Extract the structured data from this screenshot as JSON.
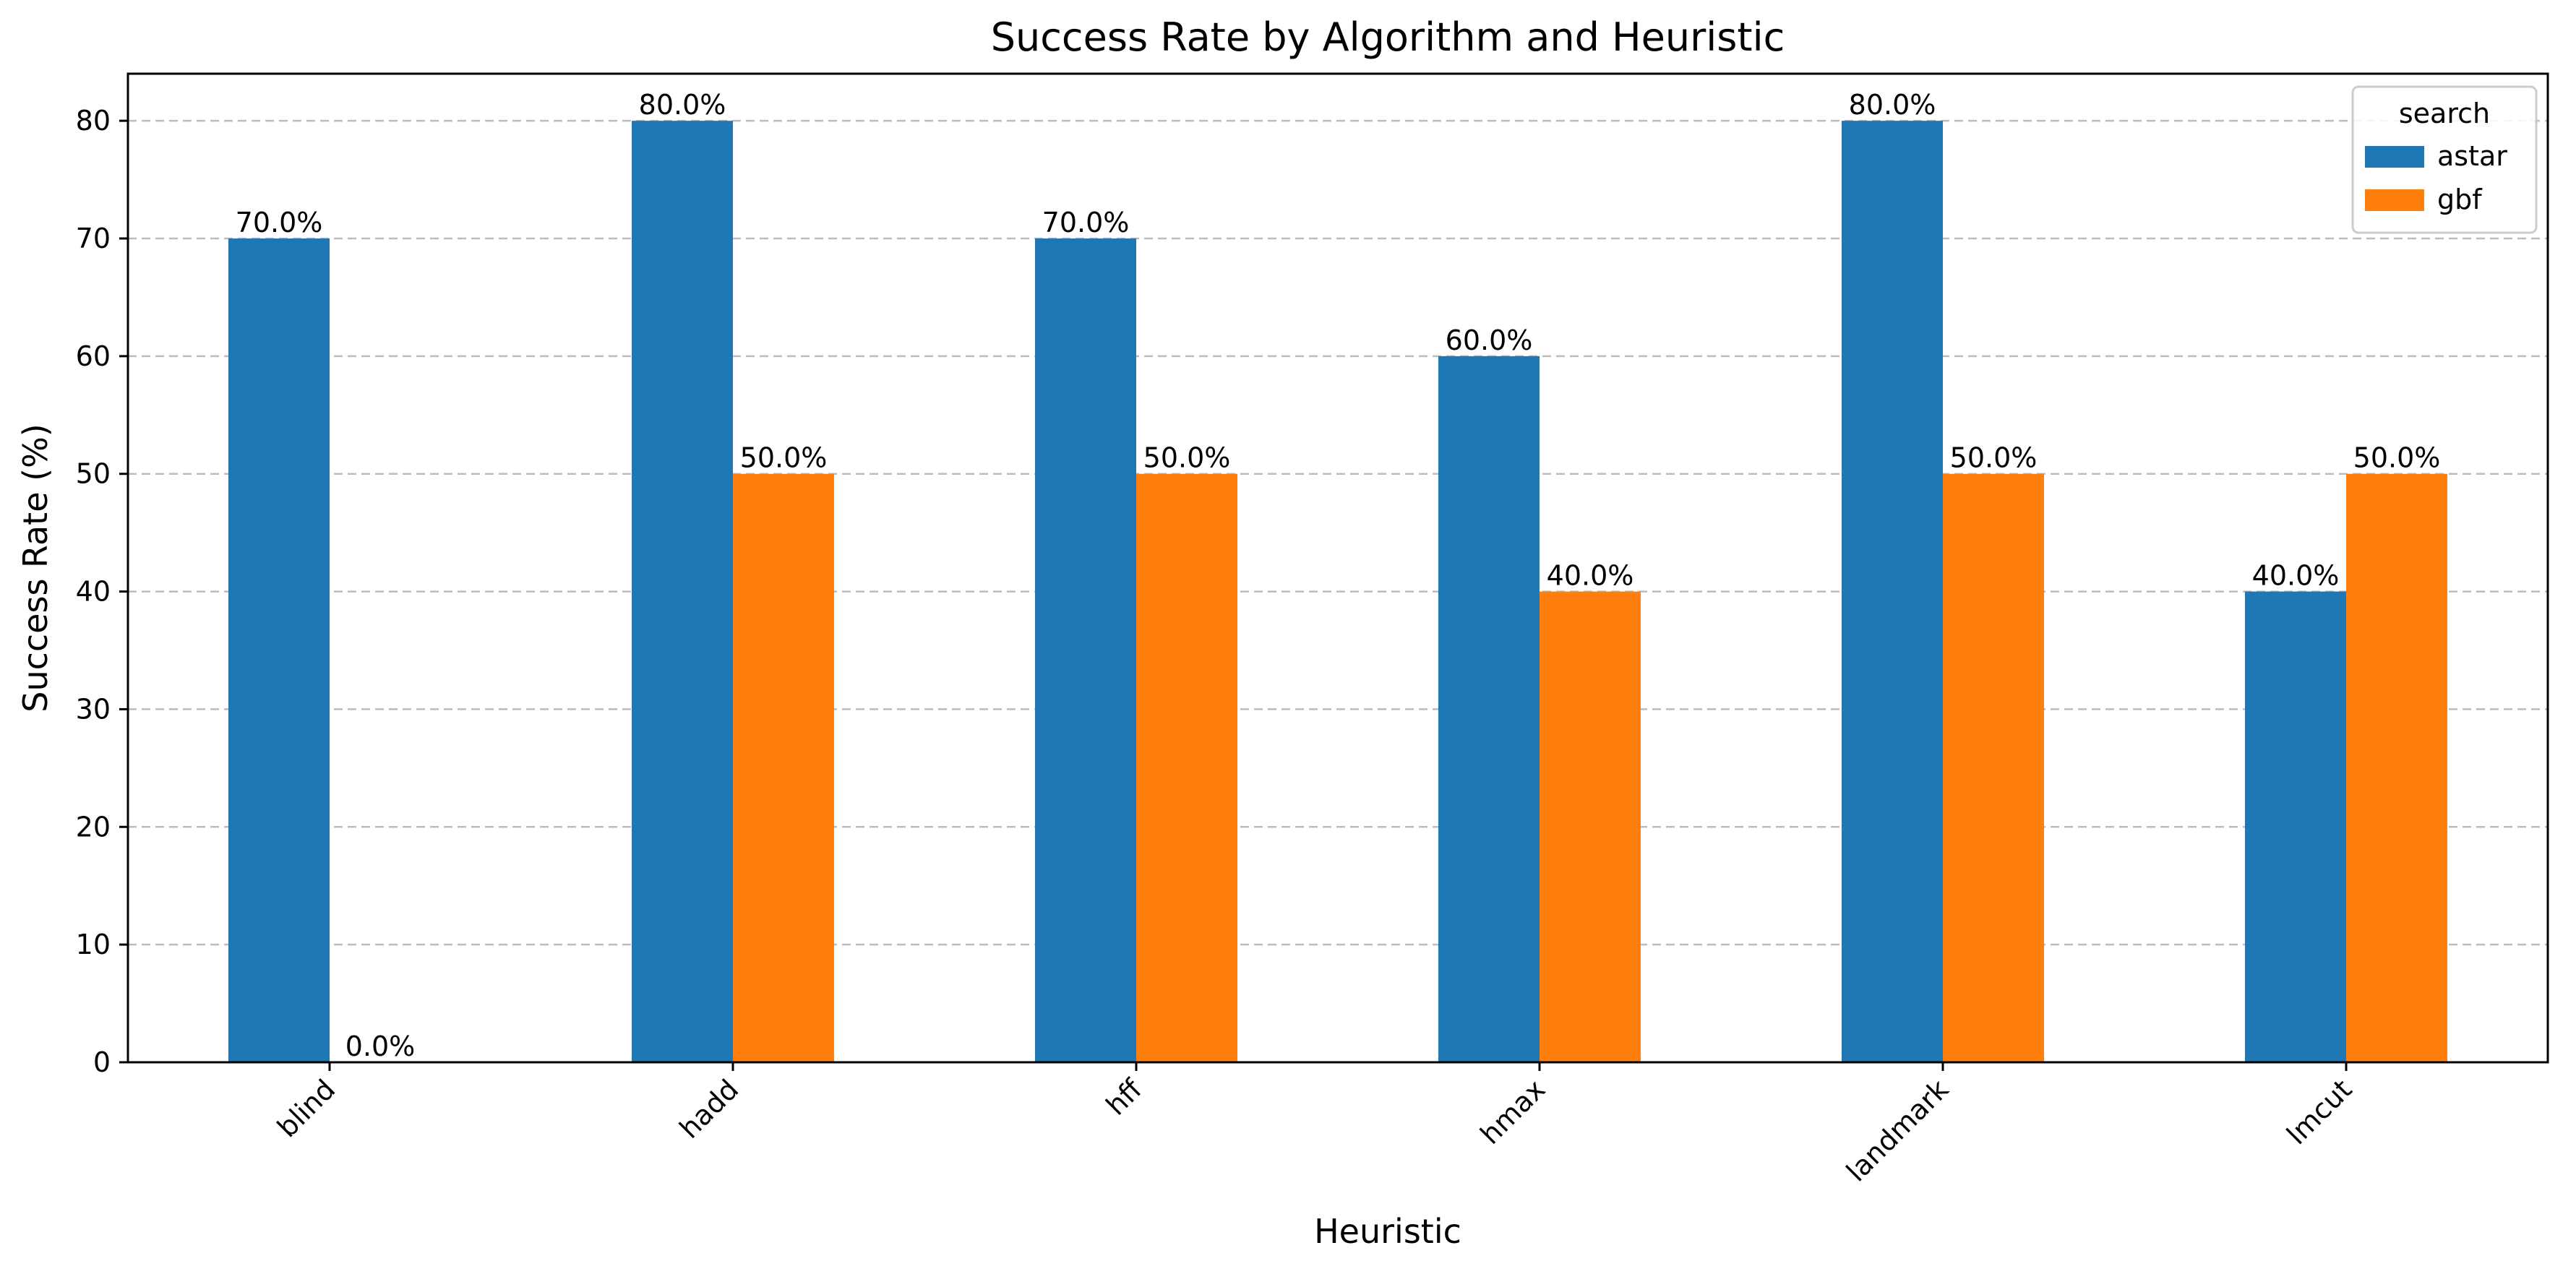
{
  "chart_data": {
    "type": "bar",
    "title": "Success Rate by Algorithm and Heuristic",
    "xlabel": "Heuristic",
    "ylabel": "Success Rate (%)",
    "categories": [
      "blind",
      "hadd",
      "hff",
      "hmax",
      "landmark",
      "lmcut"
    ],
    "series": [
      {
        "name": "astar",
        "color": "#1f77b4",
        "values": [
          70,
          80,
          70,
          60,
          80,
          40
        ],
        "labels": [
          "70.0%",
          "80.0%",
          "70.0%",
          "60.0%",
          "80.0%",
          "40.0%"
        ]
      },
      {
        "name": "gbf",
        "color": "#ff7f0e",
        "values": [
          0,
          50,
          50,
          40,
          50,
          50
        ],
        "labels": [
          "0.0%",
          "50.0%",
          "50.0%",
          "40.0%",
          "50.0%",
          "50.0%"
        ]
      }
    ],
    "ylim": [
      0,
      84
    ],
    "yticks": [
      0,
      10,
      20,
      30,
      40,
      50,
      60,
      70,
      80
    ],
    "grid": "horizontal dashed",
    "legend": {
      "title": "search",
      "placement": "top-right"
    }
  }
}
